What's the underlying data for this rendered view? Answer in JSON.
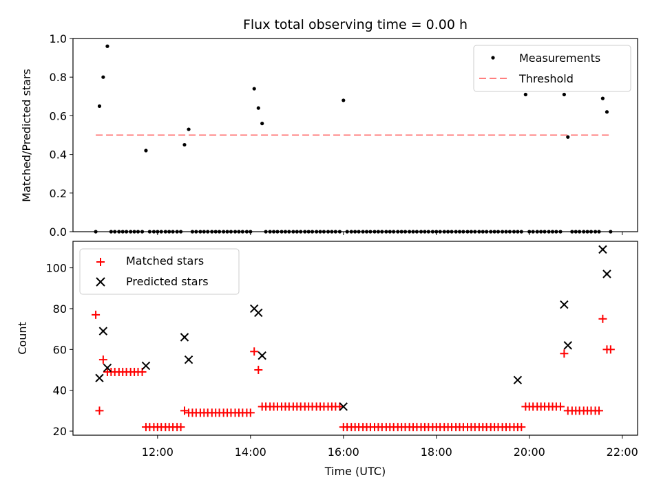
{
  "chart_data": {
    "title": "Flux total observing time = 0.00 h",
    "xlabel": "Time (UTC)",
    "x_tick_labels": [
      "12:00",
      "14:00",
      "16:00",
      "18:00",
      "20:00",
      "22:00"
    ],
    "x_ticks_hours": [
      12,
      14,
      16,
      18,
      20,
      22
    ],
    "xlim_hours": [
      10.18,
      22.33
    ],
    "colors": {
      "measurement": "#000000",
      "threshold": "#ff7f7f",
      "matched": "#ff0000",
      "predicted": "#000000"
    },
    "top": {
      "type": "scatter",
      "ylabel": "Matched/Predicted stars",
      "ylim": [
        0,
        1.0
      ],
      "y_ticks": [
        "0.0",
        "0.2",
        "0.4",
        "0.6",
        "0.8",
        "1.0"
      ],
      "threshold": {
        "name": "Threshold",
        "value": 0.5,
        "x_range_hours": [
          10.67,
          21.75
        ]
      },
      "measurements_name": "Measurements",
      "measurements_x_hours": [
        10.67,
        10.75,
        10.83,
        10.92,
        11.0,
        11.08,
        11.17,
        11.25,
        11.33,
        11.42,
        11.5,
        11.58,
        11.67,
        11.75,
        11.83,
        11.92,
        12.0,
        12.08,
        12.17,
        12.25,
        12.33,
        12.42,
        12.5,
        12.58,
        12.67,
        12.75,
        12.83,
        12.92,
        13.0,
        13.08,
        13.17,
        13.25,
        13.33,
        13.42,
        13.5,
        13.58,
        13.67,
        13.75,
        13.83,
        13.92,
        14.0,
        14.08,
        14.17,
        14.25,
        14.33,
        14.42,
        14.5,
        14.58,
        14.67,
        14.75,
        14.83,
        14.92,
        15.0,
        15.08,
        15.17,
        15.25,
        15.33,
        15.42,
        15.5,
        15.58,
        15.67,
        15.75,
        15.83,
        15.92,
        16.0,
        16.08,
        16.17,
        16.25,
        16.33,
        16.42,
        16.5,
        16.58,
        16.67,
        16.75,
        16.83,
        16.92,
        17.0,
        17.08,
        17.17,
        17.25,
        17.33,
        17.42,
        17.5,
        17.58,
        17.67,
        17.75,
        17.83,
        17.92,
        18.0,
        18.08,
        18.17,
        18.25,
        18.33,
        18.42,
        18.5,
        18.58,
        18.67,
        18.75,
        18.83,
        18.92,
        19.0,
        19.08,
        19.17,
        19.25,
        19.33,
        19.42,
        19.5,
        19.58,
        19.67,
        19.75,
        19.83,
        19.92,
        20.0,
        20.08,
        20.17,
        20.25,
        20.33,
        20.42,
        20.5,
        20.58,
        20.67,
        20.75,
        20.83,
        20.92,
        21.0,
        21.08,
        21.17,
        21.25,
        21.33,
        21.42,
        21.5,
        21.58,
        21.67,
        21.75
      ],
      "measurements_y": [
        0,
        0.65,
        0.8,
        0.96,
        0,
        0,
        0,
        0,
        0,
        0,
        0,
        0,
        0,
        0.42,
        0,
        0,
        0,
        0,
        0,
        0,
        0,
        0,
        0,
        0.45,
        0.53,
        0,
        0,
        0,
        0,
        0,
        0,
        0,
        0,
        0,
        0,
        0,
        0,
        0,
        0,
        0,
        0,
        0.74,
        0.64,
        0.56,
        0,
        0,
        0,
        0,
        0,
        0,
        0,
        0,
        0,
        0,
        0,
        0,
        0,
        0,
        0,
        0,
        0,
        0,
        0,
        0,
        0.68,
        0,
        0,
        0,
        0,
        0,
        0,
        0,
        0,
        0,
        0,
        0,
        0,
        0,
        0,
        0,
        0,
        0,
        0,
        0,
        0,
        0,
        0,
        0,
        0,
        0,
        0,
        0,
        0,
        0,
        0,
        0,
        0,
        0,
        0,
        0,
        0,
        0,
        0,
        0,
        0,
        0,
        0,
        0,
        0,
        0,
        0,
        0.71,
        0,
        0,
        0,
        0,
        0,
        0,
        0,
        0,
        0,
        0.71,
        0.49,
        0,
        0,
        0,
        0,
        0,
        0,
        0,
        0,
        0.69,
        0.62,
        0
      ]
    },
    "bottom": {
      "type": "scatter",
      "ylabel": "Count",
      "ylim": [
        18,
        113
      ],
      "y_ticks": [
        "20",
        "40",
        "60",
        "80",
        "100"
      ],
      "series": [
        {
          "name": "Matched stars",
          "marker": "+",
          "x_hours": [
            10.67,
            10.75,
            10.83,
            10.92,
            11.0,
            11.08,
            11.17,
            11.25,
            11.33,
            11.42,
            11.5,
            11.58,
            11.67,
            11.75,
            11.83,
            11.92,
            12.0,
            12.08,
            12.17,
            12.25,
            12.33,
            12.42,
            12.5,
            12.58,
            12.67,
            12.75,
            12.83,
            12.92,
            13.0,
            13.08,
            13.17,
            13.25,
            13.33,
            13.42,
            13.5,
            13.58,
            13.67,
            13.75,
            13.83,
            13.92,
            14.0,
            14.08,
            14.17,
            14.25,
            14.33,
            14.42,
            14.5,
            14.58,
            14.67,
            14.75,
            14.83,
            14.92,
            15.0,
            15.08,
            15.17,
            15.25,
            15.33,
            15.42,
            15.5,
            15.58,
            15.67,
            15.75,
            15.83,
            15.92,
            16.0,
            16.08,
            16.17,
            16.25,
            16.33,
            16.42,
            16.5,
            16.58,
            16.67,
            16.75,
            16.83,
            16.92,
            17.0,
            17.08,
            17.17,
            17.25,
            17.33,
            17.42,
            17.5,
            17.58,
            17.67,
            17.75,
            17.83,
            17.92,
            18.0,
            18.08,
            18.17,
            18.25,
            18.33,
            18.42,
            18.5,
            18.58,
            18.67,
            18.75,
            18.83,
            18.92,
            19.0,
            19.08,
            19.17,
            19.25,
            19.33,
            19.42,
            19.5,
            19.58,
            19.67,
            19.75,
            19.83,
            19.92,
            20.0,
            20.08,
            20.17,
            20.25,
            20.33,
            20.42,
            20.5,
            20.58,
            20.67,
            20.75,
            20.83,
            20.92,
            21.0,
            21.08,
            21.17,
            21.25,
            21.33,
            21.42,
            21.5,
            21.58,
            21.67,
            21.75
          ],
          "y": [
            77,
            30,
            55,
            49,
            49,
            49,
            49,
            49,
            49,
            49,
            49,
            49,
            49,
            22,
            22,
            22,
            22,
            22,
            22,
            22,
            22,
            22,
            22,
            30,
            29,
            29,
            29,
            29,
            29,
            29,
            29,
            29,
            29,
            29,
            29,
            29,
            29,
            29,
            29,
            29,
            29,
            59,
            50,
            32,
            32,
            32,
            32,
            32,
            32,
            32,
            32,
            32,
            32,
            32,
            32,
            32,
            32,
            32,
            32,
            32,
            32,
            32,
            32,
            32,
            22,
            22,
            22,
            22,
            22,
            22,
            22,
            22,
            22,
            22,
            22,
            22,
            22,
            22,
            22,
            22,
            22,
            22,
            22,
            22,
            22,
            22,
            22,
            22,
            22,
            22,
            22,
            22,
            22,
            22,
            22,
            22,
            22,
            22,
            22,
            22,
            22,
            22,
            22,
            22,
            22,
            22,
            22,
            22,
            22,
            22,
            22,
            32,
            32,
            32,
            32,
            32,
            32,
            32,
            32,
            32,
            32,
            58,
            30,
            30,
            30,
            30,
            30,
            30,
            30,
            30,
            30,
            75,
            60,
            60
          ]
        },
        {
          "name": "Predicted stars",
          "marker": "x",
          "x_hours": [
            10.75,
            10.83,
            10.92,
            11.75,
            12.58,
            12.67,
            14.08,
            14.17,
            14.25,
            16.0,
            19.75,
            20.75,
            20.83,
            21.58,
            21.67
          ],
          "y": [
            46,
            69,
            51,
            52,
            66,
            55,
            80,
            78,
            57,
            32,
            45,
            82,
            62,
            109,
            97
          ]
        }
      ]
    }
  }
}
